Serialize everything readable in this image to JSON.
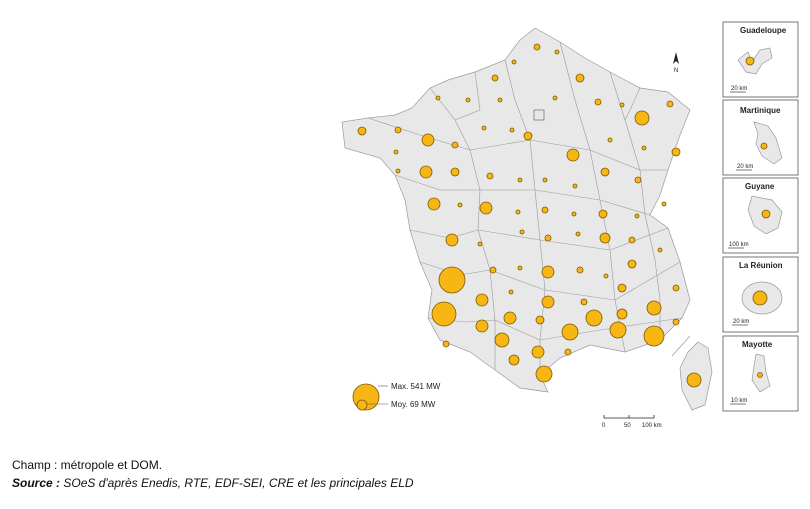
{
  "legend": {
    "max_label": "Max. 541 MW",
    "avg_label": "Moy. 69 MW",
    "color": "#f7b614"
  },
  "scale_bar": {
    "labels": [
      "0",
      "50",
      "100 km"
    ]
  },
  "north_arrow": {
    "label": "N"
  },
  "insets": [
    {
      "name": "Guadeloupe",
      "scale": "20 km"
    },
    {
      "name": "Martinique",
      "scale": "20 km"
    },
    {
      "name": "Guyane",
      "scale": "100 km"
    },
    {
      "name": "La Réunion",
      "scale": "20 km"
    },
    {
      "name": "Mayotte",
      "scale": "10 km"
    }
  ],
  "caption": {
    "line1": "Champ : métropole et DOM.",
    "source_label": "Source :",
    "source_text": " SOeS d'après Enedis, RTE, EDF-SEI, CRE et les principales ELD"
  }
}
